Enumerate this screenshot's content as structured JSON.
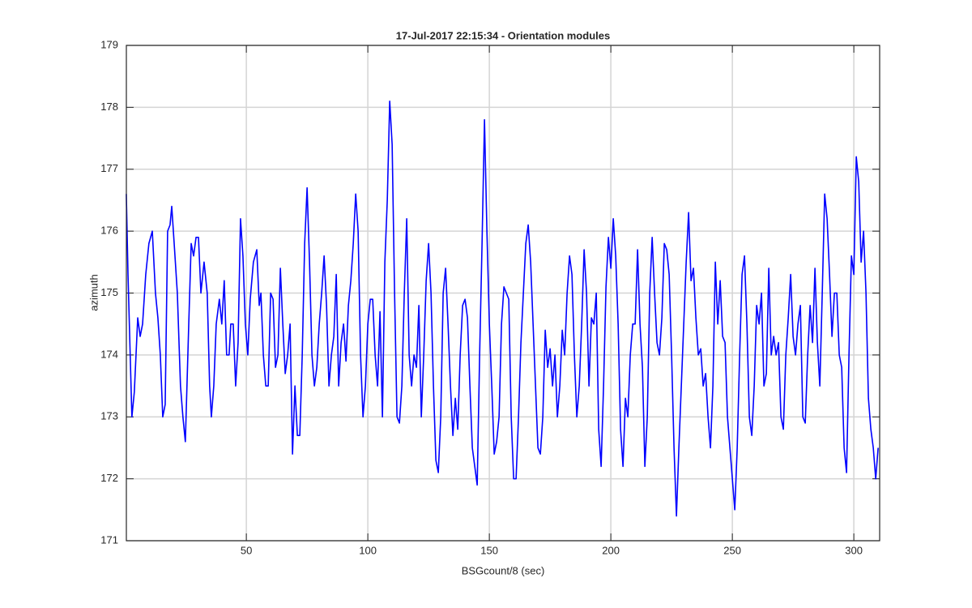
{
  "chart_data": {
    "type": "line",
    "title": "17-Jul-2017 22:15:34 - Orientation modules",
    "x_label": "BSGcount/8 (sec)",
    "y_label": "azimuth",
    "color": "#0000ff",
    "grid": true,
    "xlim": [
      0.625,
      310.625
    ],
    "xticks": [
      50,
      100,
      150,
      200,
      250,
      300
    ],
    "ylim": [
      171,
      179
    ],
    "yticks": [
      171,
      172,
      173,
      174,
      175,
      176,
      177,
      178,
      179
    ],
    "x": [
      0.6,
      1.3,
      2.9,
      3.9,
      5.3,
      6.3,
      7.3,
      8.6,
      9.9,
      11.3,
      12.6,
      13.6,
      14.6,
      15.6,
      16.6,
      17.6,
      18.6,
      19.3,
      20.3,
      21.6,
      22.9,
      23.9,
      24.9,
      26.3,
      27.3,
      28.3,
      29.3,
      30.3,
      31.3,
      32.6,
      33.9,
      34.9,
      35.6,
      36.6,
      37.6,
      38.9,
      39.9,
      40.9,
      41.9,
      42.9,
      43.6,
      44.6,
      45.6,
      46.6,
      47.6,
      48.6,
      49.6,
      50.6,
      51.6,
      52.9,
      54.3,
      55.3,
      56,
      57,
      58,
      59,
      60,
      61,
      62,
      63,
      64,
      65,
      66,
      67,
      68,
      69,
      70,
      71,
      72,
      73,
      74,
      75,
      76,
      77,
      78,
      79,
      80,
      81,
      82,
      83,
      84,
      85,
      86,
      87,
      88,
      89,
      90,
      91,
      92,
      93,
      94,
      95,
      96,
      97,
      98,
      99,
      100,
      101,
      102,
      103,
      104,
      105,
      106,
      107,
      108,
      109,
      110,
      111,
      112,
      113,
      114,
      115,
      116,
      117,
      118,
      119,
      120,
      121,
      122,
      123,
      124,
      125,
      126,
      127,
      128,
      129,
      130,
      131,
      132,
      133,
      134,
      135,
      136,
      137,
      138,
      139,
      140,
      141,
      142,
      143,
      144,
      145,
      146,
      147,
      148,
      149,
      150,
      151,
      152,
      153,
      154,
      155,
      156,
      157,
      158,
      159,
      160,
      161,
      162,
      163,
      164,
      165,
      166,
      167,
      168,
      169,
      170,
      171,
      172,
      173,
      174,
      175,
      176,
      177,
      178,
      179,
      180,
      181,
      182,
      183,
      184,
      185,
      186,
      187,
      188,
      189,
      190,
      191,
      192,
      193,
      194,
      195,
      196,
      197,
      198,
      199,
      200,
      201,
      202,
      203,
      204,
      205,
      206,
      207,
      208,
      209,
      210,
      211,
      212,
      213,
      214,
      215,
      216,
      217,
      218,
      219,
      220,
      221,
      222,
      223,
      224,
      225,
      226,
      227,
      228,
      229,
      230,
      231,
      232,
      233,
      234,
      235,
      236,
      237,
      238,
      239,
      240,
      241,
      242,
      243,
      244,
      245,
      246,
      247,
      248,
      249,
      250,
      251,
      252,
      253,
      254,
      255,
      256,
      257,
      258,
      259,
      260,
      261,
      262,
      263,
      264,
      265,
      266,
      267,
      268,
      269,
      270,
      271,
      272,
      273,
      274,
      275,
      276,
      277,
      278,
      279,
      280,
      281,
      282,
      283,
      284,
      285,
      286,
      287,
      288,
      289,
      290,
      291,
      292,
      293,
      294,
      295,
      296,
      297,
      298,
      299,
      300,
      301,
      302,
      303,
      304,
      305,
      306,
      307,
      308,
      309,
      310
    ],
    "values": [
      176.6,
      175.3,
      173.0,
      173.4,
      174.6,
      174.3,
      174.5,
      175.3,
      175.8,
      176.0,
      175.0,
      174.6,
      174.0,
      173.0,
      173.2,
      176.0,
      176.1,
      176.4,
      175.8,
      175.0,
      173.5,
      173.0,
      172.6,
      174.5,
      175.8,
      175.6,
      175.9,
      175.9,
      175.0,
      175.5,
      175.0,
      173.5,
      173.0,
      173.5,
      174.5,
      174.9,
      174.5,
      175.2,
      174.0,
      174.0,
      174.5,
      174.5,
      173.5,
      174.2,
      176.2,
      175.6,
      174.5,
      174.0,
      174.9,
      175.5,
      175.7,
      174.8,
      175.0,
      174.0,
      173.5,
      173.5,
      175.0,
      174.9,
      173.8,
      174.0,
      175.4,
      174.5,
      173.7,
      174.0,
      174.5,
      172.4,
      173.5,
      172.7,
      172.7,
      174.0,
      175.8,
      176.7,
      175.5,
      174.0,
      173.5,
      173.8,
      174.5,
      175.0,
      175.6,
      174.8,
      173.5,
      174.0,
      174.3,
      175.3,
      173.5,
      174.2,
      174.5,
      173.9,
      174.8,
      175.2,
      175.8,
      176.6,
      176.0,
      174.0,
      173.0,
      173.5,
      174.5,
      174.9,
      174.9,
      174.0,
      173.5,
      174.7,
      173.0,
      175.5,
      176.5,
      178.1,
      177.4,
      175.0,
      173.0,
      172.9,
      173.5,
      175.0,
      176.2,
      174.0,
      173.5,
      174.0,
      173.8,
      174.8,
      173.0,
      174.0,
      175.2,
      175.8,
      175.0,
      173.5,
      172.3,
      172.1,
      173.0,
      175.0,
      175.4,
      174.5,
      173.5,
      172.7,
      173.3,
      172.8,
      174.0,
      174.8,
      174.9,
      174.6,
      173.5,
      172.5,
      172.2,
      171.9,
      174.0,
      175.8,
      177.8,
      176.0,
      174.5,
      173.5,
      172.4,
      172.6,
      173.0,
      174.5,
      175.1,
      175.0,
      174.9,
      173.0,
      172.0,
      172.0,
      173.0,
      174.2,
      175.0,
      175.8,
      176.1,
      175.5,
      174.5,
      173.5,
      172.5,
      172.4,
      173.0,
      174.4,
      173.8,
      174.1,
      173.5,
      174.0,
      173.0,
      173.5,
      174.4,
      174.0,
      175.0,
      175.6,
      175.3,
      174.0,
      173.0,
      173.5,
      174.5,
      175.7,
      175.0,
      173.5,
      174.6,
      174.5,
      175.0,
      172.8,
      172.2,
      173.5,
      175.1,
      175.9,
      175.4,
      176.2,
      175.6,
      174.5,
      172.8,
      172.2,
      173.3,
      173.0,
      174.0,
      174.5,
      174.5,
      175.7,
      174.5,
      173.8,
      172.2,
      173.0,
      175.0,
      175.9,
      175.0,
      174.2,
      174.0,
      174.6,
      175.8,
      175.7,
      175.3,
      174.0,
      172.5,
      171.4,
      172.5,
      173.5,
      174.5,
      175.5,
      176.3,
      175.2,
      175.4,
      174.6,
      174.0,
      174.1,
      173.5,
      173.7,
      173.0,
      172.5,
      173.5,
      175.5,
      174.5,
      175.2,
      174.3,
      174.2,
      173.0,
      172.5,
      172.0,
      171.5,
      172.5,
      174.0,
      175.3,
      175.6,
      174.5,
      173.0,
      172.7,
      173.5,
      174.8,
      174.5,
      175.0,
      173.5,
      173.7,
      175.4,
      174.0,
      174.3,
      174.0,
      174.2,
      173.0,
      172.8,
      174.0,
      174.6,
      175.3,
      174.3,
      174.0,
      174.5,
      174.8,
      173.0,
      172.9,
      174.0,
      174.8,
      174.2,
      175.4,
      174.2,
      173.5,
      175.0,
      176.6,
      176.2,
      175.3,
      174.3,
      175.0,
      175.0,
      174.0,
      173.8,
      172.5,
      172.1,
      174.0,
      175.6,
      175.3,
      177.2,
      176.8,
      175.5,
      176.0,
      175.0,
      173.3,
      172.8,
      172.5,
      172.0,
      172.5
    ]
  }
}
